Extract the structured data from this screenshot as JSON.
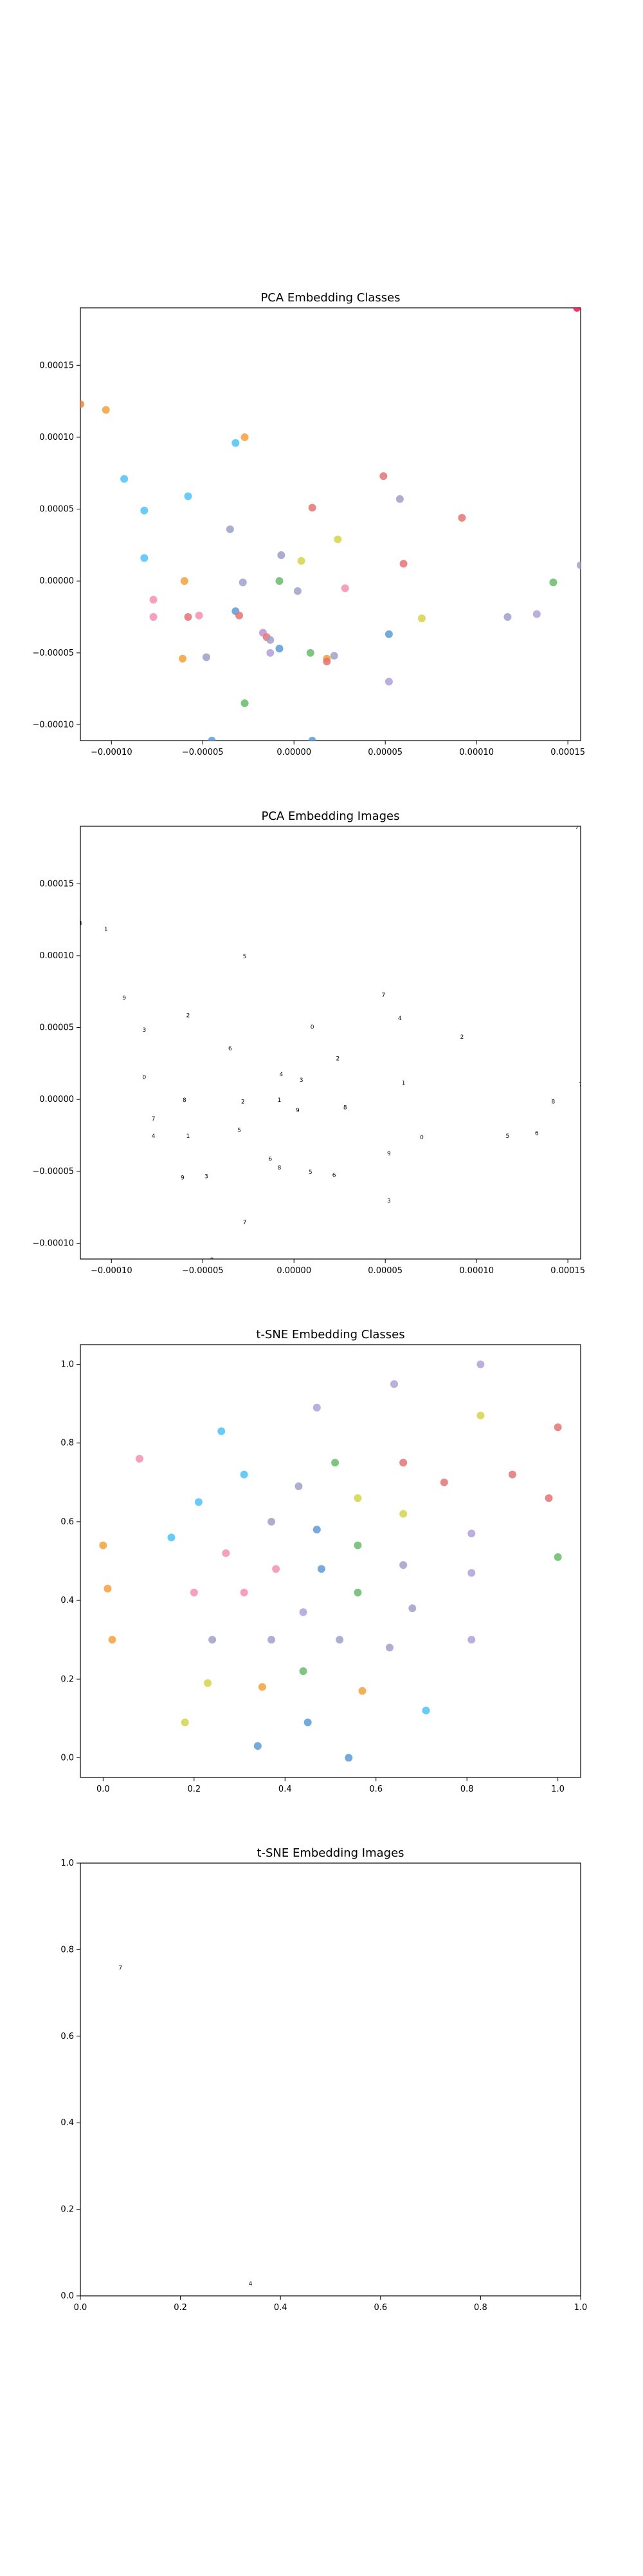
{
  "chart_data": [
    {
      "type": "scatter",
      "title": "PCA Embedding Classes",
      "xlim": [
        -0.000117,
        0.000157
      ],
      "ylim": [
        -0.000111,
        0.00019
      ],
      "xticks": [
        -0.0001,
        -5e-05,
        0.0,
        5e-05,
        0.0001,
        0.00015
      ],
      "xtick_labels": [
        "−0.00010",
        "−0.00005",
        "0.00000",
        "0.00005",
        "0.00010",
        "0.00015"
      ],
      "yticks": [
        -0.0001,
        -5e-05,
        0.0,
        5e-05,
        0.0001,
        0.00015
      ],
      "ytick_labels": [
        "−0.00010",
        "−0.00005",
        "0.00000",
        "0.00005",
        "0.00010",
        "0.00015"
      ],
      "points": [
        {
          "x": 0.000155,
          "y": 0.00019,
          "color": "#e6194b"
        },
        {
          "x": -0.000117,
          "y": 0.000123,
          "color": "#f58231"
        },
        {
          "x": -0.000103,
          "y": 0.000119,
          "color": "#f5a03c"
        },
        {
          "x": -9.3e-05,
          "y": 7.1e-05,
          "color": "#4fc3f7"
        },
        {
          "x": -8.2e-05,
          "y": 4.9e-05,
          "color": "#4fc3f7"
        },
        {
          "x": -8.2e-05,
          "y": 1.6e-05,
          "color": "#4fc3f7"
        },
        {
          "x": -5.8e-05,
          "y": 5.9e-05,
          "color": "#4fc3f7"
        },
        {
          "x": -3.2e-05,
          "y": 9.6e-05,
          "color": "#4fc3f7"
        },
        {
          "x": -2.7e-05,
          "y": 0.0001,
          "color": "#f5a03c"
        },
        {
          "x": -3.5e-05,
          "y": 3.6e-05,
          "color": "#9e9ec8"
        },
        {
          "x": -6e-05,
          "y": 0.0,
          "color": "#f5a03c"
        },
        {
          "x": -7.7e-05,
          "y": -1.3e-05,
          "color": "#f48fb1"
        },
        {
          "x": -7.7e-05,
          "y": -2.5e-05,
          "color": "#f48fb1"
        },
        {
          "x": -5.8e-05,
          "y": -2.5e-05,
          "color": "#e57373"
        },
        {
          "x": -5.2e-05,
          "y": -2.4e-05,
          "color": "#f48fb1"
        },
        {
          "x": -6.1e-05,
          "y": -5.4e-05,
          "color": "#f5a03c"
        },
        {
          "x": -4.8e-05,
          "y": -5.3e-05,
          "color": "#9e9ec8"
        },
        {
          "x": -4.5e-05,
          "y": -0.000111,
          "color": "#5c9bd6"
        },
        {
          "x": -2.8e-05,
          "y": -1e-06,
          "color": "#a0a0c8"
        },
        {
          "x": -3.2e-05,
          "y": -2.1e-05,
          "color": "#5c9bd6"
        },
        {
          "x": -3e-05,
          "y": -2.4e-05,
          "color": "#e57373"
        },
        {
          "x": -1.7e-05,
          "y": -3.6e-05,
          "color": "#c090d0"
        },
        {
          "x": -1.5e-05,
          "y": -3.9e-05,
          "color": "#e57373"
        },
        {
          "x": -1.3e-05,
          "y": -4.1e-05,
          "color": "#a0a0c8"
        },
        {
          "x": -1.3e-05,
          "y": -5e-05,
          "color": "#b0a0d8"
        },
        {
          "x": -8e-06,
          "y": -4.7e-05,
          "color": "#5c9bd6"
        },
        {
          "x": -2.7e-05,
          "y": -8.5e-05,
          "color": "#66bb6a"
        },
        {
          "x": -7e-06,
          "y": 1.8e-05,
          "color": "#9e9ec8"
        },
        {
          "x": -8e-06,
          "y": 0.0,
          "color": "#66bb6a"
        },
        {
          "x": 2e-06,
          "y": -7e-06,
          "color": "#a0a0c8"
        },
        {
          "x": 4e-06,
          "y": 1.4e-05,
          "color": "#d4d44a"
        },
        {
          "x": 1e-05,
          "y": 5.1e-05,
          "color": "#e57373"
        },
        {
          "x": 2.4e-05,
          "y": 2.9e-05,
          "color": "#d4d44a"
        },
        {
          "x": 9e-06,
          "y": -5e-05,
          "color": "#66bb6a"
        },
        {
          "x": 1.8e-05,
          "y": -5.4e-05,
          "color": "#f5a03c"
        },
        {
          "x": 1.8e-05,
          "y": -5.6e-05,
          "color": "#e57373"
        },
        {
          "x": 2.2e-05,
          "y": -5.2e-05,
          "color": "#a0a0c8"
        },
        {
          "x": 2.8e-05,
          "y": -5e-06,
          "color": "#f48fb1"
        },
        {
          "x": 1e-05,
          "y": -0.000111,
          "color": "#5c9bd6"
        },
        {
          "x": 4.9e-05,
          "y": 7.3e-05,
          "color": "#e57373"
        },
        {
          "x": 5.8e-05,
          "y": 5.7e-05,
          "color": "#a0a0c8"
        },
        {
          "x": 6e-05,
          "y": 1.2e-05,
          "color": "#e57373"
        },
        {
          "x": 5.2e-05,
          "y": -3.7e-05,
          "color": "#5c9bd6"
        },
        {
          "x": 5.2e-05,
          "y": -7e-05,
          "color": "#b0a0d8"
        },
        {
          "x": 7e-05,
          "y": -2.6e-05,
          "color": "#d4d44a"
        },
        {
          "x": 9.2e-05,
          "y": 4.4e-05,
          "color": "#e57373"
        },
        {
          "x": 0.000117,
          "y": -2.5e-05,
          "color": "#a0a0c8"
        },
        {
          "x": 0.000133,
          "y": -2.3e-05,
          "color": "#b0a0d8"
        },
        {
          "x": 0.000142,
          "y": -1e-06,
          "color": "#66bb6a"
        },
        {
          "x": 0.000157,
          "y": 1.1e-05,
          "color": "#a0a0c8"
        }
      ]
    },
    {
      "type": "scatter",
      "title": "PCA Embedding Images",
      "xlim": [
        -0.000117,
        0.000157
      ],
      "ylim": [
        -0.000111,
        0.00019
      ],
      "xticks": [
        -0.0001,
        -5e-05,
        0.0,
        5e-05,
        0.0001,
        0.00015
      ],
      "xtick_labels": [
        "−0.00010",
        "−0.00005",
        "0.00000",
        "0.00005",
        "0.00010",
        "0.00015"
      ],
      "yticks": [
        -0.0001,
        -5e-05,
        0.0,
        5e-05,
        0.0001,
        0.00015
      ],
      "ytick_labels": [
        "−0.00010",
        "−0.00005",
        "0.00000",
        "0.00005",
        "0.00010",
        "0.00015"
      ],
      "points": [
        {
          "x": 0.000155,
          "y": 0.00019
        },
        {
          "x": -0.000117,
          "y": 0.000123
        },
        {
          "x": -0.000103,
          "y": 0.000119
        },
        {
          "x": -9.3e-05,
          "y": 7.1e-05
        },
        {
          "x": -8.2e-05,
          "y": 4.9e-05
        },
        {
          "x": -8.2e-05,
          "y": 1.6e-05
        },
        {
          "x": -5.8e-05,
          "y": 5.9e-05
        },
        {
          "x": -2.7e-05,
          "y": 0.0001
        },
        {
          "x": -3.5e-05,
          "y": 3.6e-05
        },
        {
          "x": -6e-05,
          "y": 0.0
        },
        {
          "x": -7.7e-05,
          "y": -1.3e-05
        },
        {
          "x": -7.7e-05,
          "y": -2.5e-05
        },
        {
          "x": -5.8e-05,
          "y": -2.5e-05
        },
        {
          "x": -6.1e-05,
          "y": -5.4e-05
        },
        {
          "x": -4.8e-05,
          "y": -5.3e-05
        },
        {
          "x": -4.5e-05,
          "y": -0.000111
        },
        {
          "x": -2.8e-05,
          "y": -1e-06
        },
        {
          "x": -3e-05,
          "y": -2.1e-05
        },
        {
          "x": -1.3e-05,
          "y": -4.1e-05
        },
        {
          "x": -8e-06,
          "y": -4.7e-05
        },
        {
          "x": -2.7e-05,
          "y": -8.5e-05
        },
        {
          "x": -7e-06,
          "y": 1.8e-05
        },
        {
          "x": -8e-06,
          "y": 0.0
        },
        {
          "x": 2e-06,
          "y": -7e-06
        },
        {
          "x": 4e-06,
          "y": 1.4e-05
        },
        {
          "x": 1e-05,
          "y": 5.1e-05
        },
        {
          "x": 2.4e-05,
          "y": 2.9e-05
        },
        {
          "x": 9e-06,
          "y": -5e-05
        },
        {
          "x": 2.2e-05,
          "y": -5.2e-05
        },
        {
          "x": 2.8e-05,
          "y": -5e-06
        },
        {
          "x": 4.9e-05,
          "y": 7.3e-05
        },
        {
          "x": 5.8e-05,
          "y": 5.7e-05
        },
        {
          "x": 6e-05,
          "y": 1.2e-05
        },
        {
          "x": 5.2e-05,
          "y": -3.7e-05
        },
        {
          "x": 5.2e-05,
          "y": -7e-05
        },
        {
          "x": 7e-05,
          "y": -2.6e-05
        },
        {
          "x": 9.2e-05,
          "y": 4.4e-05
        },
        {
          "x": 0.000117,
          "y": -2.5e-05
        },
        {
          "x": 0.000133,
          "y": -2.3e-05
        },
        {
          "x": 0.000142,
          "y": -1e-06
        },
        {
          "x": 0.000157,
          "y": 1.1e-05
        }
      ]
    },
    {
      "type": "scatter",
      "title": "t-SNE Embedding Classes",
      "xlim": [
        -0.05,
        1.05
      ],
      "ylim": [
        -0.05,
        1.05
      ],
      "xticks": [
        0.0,
        0.2,
        0.4,
        0.6,
        0.8,
        1.0
      ],
      "xtick_labels": [
        "0.0",
        "0.2",
        "0.4",
        "0.6",
        "0.8",
        "1.0"
      ],
      "yticks": [
        0.0,
        0.2,
        0.4,
        0.6,
        0.8,
        1.0
      ],
      "ytick_labels": [
        "0.0",
        "0.2",
        "0.4",
        "0.6",
        "0.8",
        "1.0"
      ],
      "points": [
        {
          "x": 0.83,
          "y": 1.0,
          "color": "#b0a0d8"
        },
        {
          "x": 0.64,
          "y": 0.95,
          "color": "#b0a0d8"
        },
        {
          "x": 0.47,
          "y": 0.89,
          "color": "#b0a0d8"
        },
        {
          "x": 0.83,
          "y": 0.87,
          "color": "#d4d44a"
        },
        {
          "x": 1.0,
          "y": 0.84,
          "color": "#e57373"
        },
        {
          "x": 0.26,
          "y": 0.83,
          "color": "#4fc3f7"
        },
        {
          "x": 0.08,
          "y": 0.76,
          "color": "#f48fb1"
        },
        {
          "x": 0.66,
          "y": 0.75,
          "color": "#e57373"
        },
        {
          "x": 0.51,
          "y": 0.75,
          "color": "#66bb6a"
        },
        {
          "x": 0.31,
          "y": 0.72,
          "color": "#4fc3f7"
        },
        {
          "x": 0.9,
          "y": 0.72,
          "color": "#e57373"
        },
        {
          "x": 0.75,
          "y": 0.7,
          "color": "#e57373"
        },
        {
          "x": 0.43,
          "y": 0.69,
          "color": "#a0a0c8"
        },
        {
          "x": 0.56,
          "y": 0.66,
          "color": "#d4d44a"
        },
        {
          "x": 0.98,
          "y": 0.66,
          "color": "#e57373"
        },
        {
          "x": 0.21,
          "y": 0.65,
          "color": "#4fc3f7"
        },
        {
          "x": 0.66,
          "y": 0.62,
          "color": "#d4d44a"
        },
        {
          "x": 0.37,
          "y": 0.6,
          "color": "#a0a0c8"
        },
        {
          "x": 0.47,
          "y": 0.58,
          "color": "#5c9bd6"
        },
        {
          "x": 0.81,
          "y": 0.57,
          "color": "#b0a0d8"
        },
        {
          "x": 0.15,
          "y": 0.56,
          "color": "#4fc3f7"
        },
        {
          "x": 0.56,
          "y": 0.54,
          "color": "#66bb6a"
        },
        {
          "x": 0.0,
          "y": 0.54,
          "color": "#f5a03c"
        },
        {
          "x": 0.27,
          "y": 0.52,
          "color": "#f48fb1"
        },
        {
          "x": 1.0,
          "y": 0.51,
          "color": "#66bb6a"
        },
        {
          "x": 0.66,
          "y": 0.49,
          "color": "#a0a0c8"
        },
        {
          "x": 0.38,
          "y": 0.48,
          "color": "#f48fb1"
        },
        {
          "x": 0.48,
          "y": 0.48,
          "color": "#5c9bd6"
        },
        {
          "x": 0.81,
          "y": 0.47,
          "color": "#b0a0d8"
        },
        {
          "x": 0.01,
          "y": 0.43,
          "color": "#f5a03c"
        },
        {
          "x": 0.56,
          "y": 0.42,
          "color": "#66bb6a"
        },
        {
          "x": 0.2,
          "y": 0.42,
          "color": "#f48fb1"
        },
        {
          "x": 0.31,
          "y": 0.42,
          "color": "#f48fb1"
        },
        {
          "x": 0.68,
          "y": 0.38,
          "color": "#a0a0c8"
        },
        {
          "x": 0.44,
          "y": 0.37,
          "color": "#b0a0d8"
        },
        {
          "x": 0.24,
          "y": 0.3,
          "color": "#a0a0c8"
        },
        {
          "x": 0.02,
          "y": 0.3,
          "color": "#f5a03c"
        },
        {
          "x": 0.37,
          "y": 0.3,
          "color": "#a0a0c8"
        },
        {
          "x": 0.52,
          "y": 0.3,
          "color": "#a0a0c8"
        },
        {
          "x": 0.81,
          "y": 0.3,
          "color": "#b0a0d8"
        },
        {
          "x": 0.63,
          "y": 0.28,
          "color": "#a0a0c8"
        },
        {
          "x": 0.44,
          "y": 0.22,
          "color": "#66bb6a"
        },
        {
          "x": 0.23,
          "y": 0.19,
          "color": "#d4d44a"
        },
        {
          "x": 0.35,
          "y": 0.18,
          "color": "#f5a03c"
        },
        {
          "x": 0.57,
          "y": 0.17,
          "color": "#f5a03c"
        },
        {
          "x": 0.71,
          "y": 0.12,
          "color": "#4fc3f7"
        },
        {
          "x": 0.18,
          "y": 0.09,
          "color": "#d4d44a"
        },
        {
          "x": 0.45,
          "y": 0.09,
          "color": "#5c9bd6"
        },
        {
          "x": 0.34,
          "y": 0.03,
          "color": "#5c9bd6"
        },
        {
          "x": 0.54,
          "y": 0.0,
          "color": "#5c9bd6"
        }
      ]
    },
    {
      "type": "scatter",
      "title": "t-SNE Embedding Images",
      "xlim": [
        0.0,
        1.0
      ],
      "ylim": [
        0.0,
        1.0
      ],
      "xticks": [
        0.0,
        0.2,
        0.4,
        0.6,
        0.8,
        1.0
      ],
      "xtick_labels": [
        "0.0",
        "0.2",
        "0.4",
        "0.6",
        "0.8",
        "1.0"
      ],
      "yticks": [
        0.0,
        0.2,
        0.4,
        0.6,
        0.8,
        1.0
      ],
      "ytick_labels": [
        "0.0",
        "0.2",
        "0.4",
        "0.6",
        "0.8",
        "1.0"
      ],
      "points": [
        {
          "x": 0.08,
          "y": 0.76
        },
        {
          "x": 0.34,
          "y": 0.03
        }
      ]
    }
  ]
}
